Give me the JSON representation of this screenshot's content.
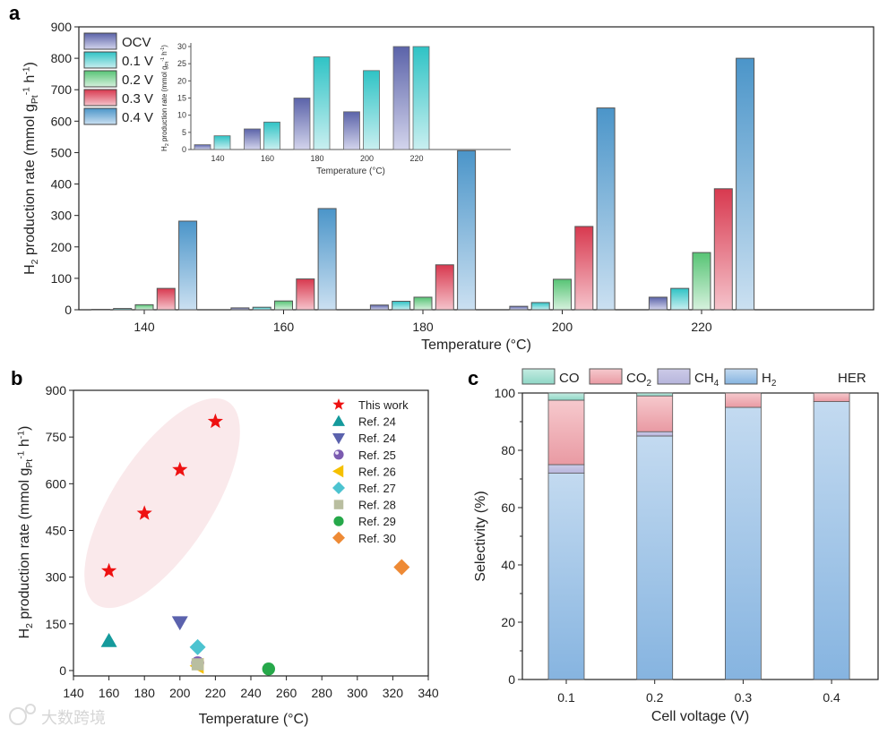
{
  "chart_data": [
    {
      "panel": "a",
      "type": "bar",
      "xlabel": "Temperature (°C)",
      "ylabel": "H2 production rate (mmol gPt-1 h-1)",
      "ylim": [
        0,
        900
      ],
      "yticks": [
        0,
        100,
        200,
        300,
        400,
        500,
        600,
        700,
        800,
        900
      ],
      "categories": [
        "140",
        "160",
        "180",
        "200",
        "220"
      ],
      "legend_position": "top-left",
      "series": [
        {
          "name": "OCV",
          "values": [
            1.4,
            6,
            15,
            11,
            40
          ],
          "color_dark": "#5b63a9",
          "color_light": "#d3d4ec"
        },
        {
          "name": "0.1 V",
          "values": [
            4,
            8,
            27,
            23,
            68
          ],
          "color_dark": "#2fc3c5",
          "color_light": "#c9eff0"
        },
        {
          "name": "0.2 V",
          "values": [
            16,
            28,
            40,
            97,
            182
          ],
          "color_dark": "#57c475",
          "color_light": "#d6f1dd"
        },
        {
          "name": "0.3 V",
          "values": [
            68,
            98,
            143,
            265,
            385
          ],
          "color_dark": "#d8394f",
          "color_light": "#f5c3cb"
        },
        {
          "name": "0.4 V",
          "values": [
            282,
            322,
            506,
            642,
            800
          ],
          "color_dark": "#4b95c9",
          "color_light": "#cbe0f1"
        }
      ],
      "inset": {
        "type": "bar",
        "xlabel": "Temperature (°C)",
        "ylabel": "H2 production rate (mmol gPt-1 h-1)",
        "ylim": [
          0,
          30
        ],
        "yticks": [
          0,
          5,
          10,
          15,
          20,
          25,
          30
        ],
        "categories": [
          "140",
          "160",
          "180",
          "200",
          "220"
        ],
        "series": [
          {
            "name": "OCV",
            "values": [
              1.4,
              6,
              15,
              11,
              30
            ]
          },
          {
            "name": "0.1 V",
            "values": [
              4,
              8,
              27,
              23,
              30
            ]
          }
        ]
      }
    },
    {
      "panel": "b",
      "type": "scatter",
      "xlabel": "Temperature (°C)",
      "ylabel": "H2 production rate (mmol gPt-1 h-1)",
      "xlim": [
        140,
        340
      ],
      "ylim": [
        0,
        900
      ],
      "xticks": [
        140,
        160,
        180,
        200,
        220,
        240,
        260,
        280,
        300,
        320,
        340
      ],
      "yticks": [
        0,
        150,
        300,
        450,
        600,
        750,
        900
      ],
      "legend_position": "top-right",
      "series": [
        {
          "name": "This work",
          "marker": "star",
          "color": "#ee1111",
          "points": [
            [
              160,
              320
            ],
            [
              180,
              505
            ],
            [
              200,
              645
            ],
            [
              220,
              800
            ]
          ]
        },
        {
          "name": "Ref. 24",
          "marker": "triangle-up",
          "color": "#159a9c",
          "points": [
            [
              160,
              95
            ]
          ]
        },
        {
          "name": "Ref. 24",
          "marker": "triangle-down",
          "color": "#5b62ad",
          "points": [
            [
              200,
              155
            ]
          ]
        },
        {
          "name": "Ref. 25",
          "marker": "sphere",
          "color": "#7b5bb0",
          "points": [
            [
              210,
              25
            ]
          ]
        },
        {
          "name": "Ref. 26",
          "marker": "triangle-left",
          "color": "#f5c000",
          "points": [
            [
              210,
              15
            ]
          ]
        },
        {
          "name": "Ref. 27",
          "marker": "diamond",
          "color": "#4cc3d0",
          "points": [
            [
              210,
              75
            ]
          ]
        },
        {
          "name": "Ref. 28",
          "marker": "square",
          "color": "#b9bea0",
          "points": [
            [
              210,
              20
            ]
          ]
        },
        {
          "name": "Ref. 29",
          "marker": "circle",
          "color": "#26a84a",
          "points": [
            [
              250,
              5
            ]
          ]
        },
        {
          "name": "Ref. 30",
          "marker": "diamond",
          "color": "#ee8a35",
          "points": [
            [
              325,
              332
            ]
          ]
        }
      ]
    },
    {
      "panel": "c",
      "type": "bar",
      "stacked": true,
      "xlabel": "Cell voltage (V)",
      "ylabel": "Selectivity (%)",
      "ylim": [
        0,
        100
      ],
      "yticks": [
        0,
        20,
        40,
        60,
        80,
        100
      ],
      "categories": [
        "0.1",
        "0.2",
        "0.3",
        "0.4"
      ],
      "legend_position": "top",
      "annotation": "HER",
      "series": [
        {
          "name": "H2",
          "values": [
            72,
            85,
            95,
            97
          ],
          "color_dark": "#86b4e0",
          "color_light": "#c3daf0"
        },
        {
          "name": "CH4",
          "values": [
            3,
            1.5,
            0,
            0
          ],
          "color_dark": "#b7b5dc",
          "color_light": "#cccbe8"
        },
        {
          "name": "CO2",
          "values": [
            22.5,
            12.5,
            5,
            3
          ],
          "color_dark": "#e99aa3",
          "color_light": "#f6c9cd"
        },
        {
          "name": "CO",
          "values": [
            2.5,
            1,
            0,
            0
          ],
          "color_dark": "#8fd7c6",
          "color_light": "#c4ece2"
        }
      ]
    }
  ],
  "watermark": "大数跨境"
}
